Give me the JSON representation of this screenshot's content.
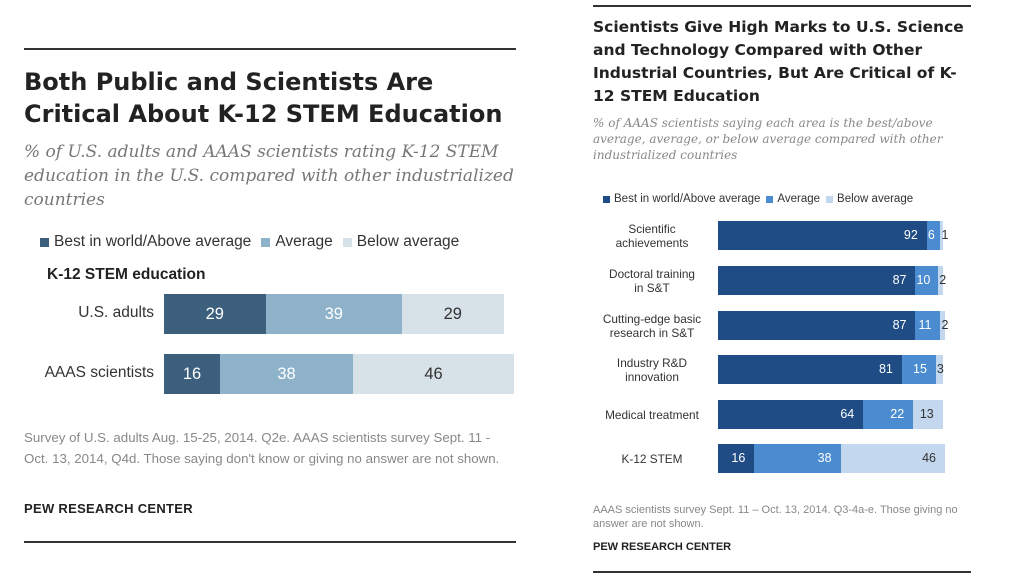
{
  "colors": {
    "dark": "#3d5f7e",
    "mid": "#8fb2cb",
    "light": "#d7e1e8",
    "r_dark": "#1f4c85",
    "r_mid": "#4b8bd0",
    "r_light": "#c3d7ee"
  },
  "chart_data": [
    {
      "type": "bar",
      "orientation": "horizontal-stacked",
      "title": "Both Public and Scientists Are Critical About K-12 STEM Education",
      "subtitle": "% of U.S. adults and AAAS scientists rating K-12 STEM education in the U.S. compared with other industrialized countries",
      "legend": [
        "Best in world/Above average",
        "Average",
        "Below average"
      ],
      "category_heading": "K-12 STEM education",
      "categories": [
        "U.S. adults",
        "AAAS scientists"
      ],
      "series": [
        {
          "name": "Best in world/Above average",
          "values": [
            29,
            16
          ]
        },
        {
          "name": "Average",
          "values": [
            39,
            38
          ]
        },
        {
          "name": "Below average",
          "values": [
            29,
            46
          ]
        }
      ],
      "note": "Survey of U.S. adults Aug. 15-25, 2014. Q2e. AAAS scientists survey Sept. 11 - Oct. 13, 2014, Q4d. Those saying don't know or giving no answer are not shown.",
      "source": "PEW RESEARCH CENTER"
    },
    {
      "type": "bar",
      "orientation": "horizontal-stacked",
      "title": "Scientists Give High Marks to U.S. Science and Technology Compared with Other Industrial Countries, But Are Critical of K-12 STEM Education",
      "subtitle": "% of AAAS scientists saying each area is the best/above average, average, or below average compared with other industrialized countries",
      "legend": [
        "Best in world/Above average",
        "Average",
        "Below average"
      ],
      "categories": [
        "Scientific achievements",
        "Doctoral training in S&T",
        "Cutting-edge basic research in S&T",
        "Industry R&D innovation",
        "Medical treatment",
        "K-12 STEM"
      ],
      "category_lines": [
        [
          "Scientific",
          "achievements"
        ],
        [
          "Doctoral training",
          "in S&T"
        ],
        [
          "Cutting-edge basic",
          "research in S&T"
        ],
        [
          "Industry R&D",
          "innovation"
        ],
        [
          "Medical treatment"
        ],
        [
          "K-12 STEM"
        ]
      ],
      "series": [
        {
          "name": "Best in world/Above average",
          "values": [
            92,
            87,
            87,
            81,
            64,
            16
          ]
        },
        {
          "name": "Average",
          "values": [
            6,
            10,
            11,
            15,
            22,
            38
          ]
        },
        {
          "name": "Below average",
          "values": [
            1,
            2,
            2,
            3,
            13,
            46
          ]
        }
      ],
      "note": "AAAS scientists survey Sept. 11 – Oct. 13, 2014. Q3-4a-e. Those giving no answer are not shown.",
      "source": "PEW RESEARCH CENTER"
    }
  ]
}
